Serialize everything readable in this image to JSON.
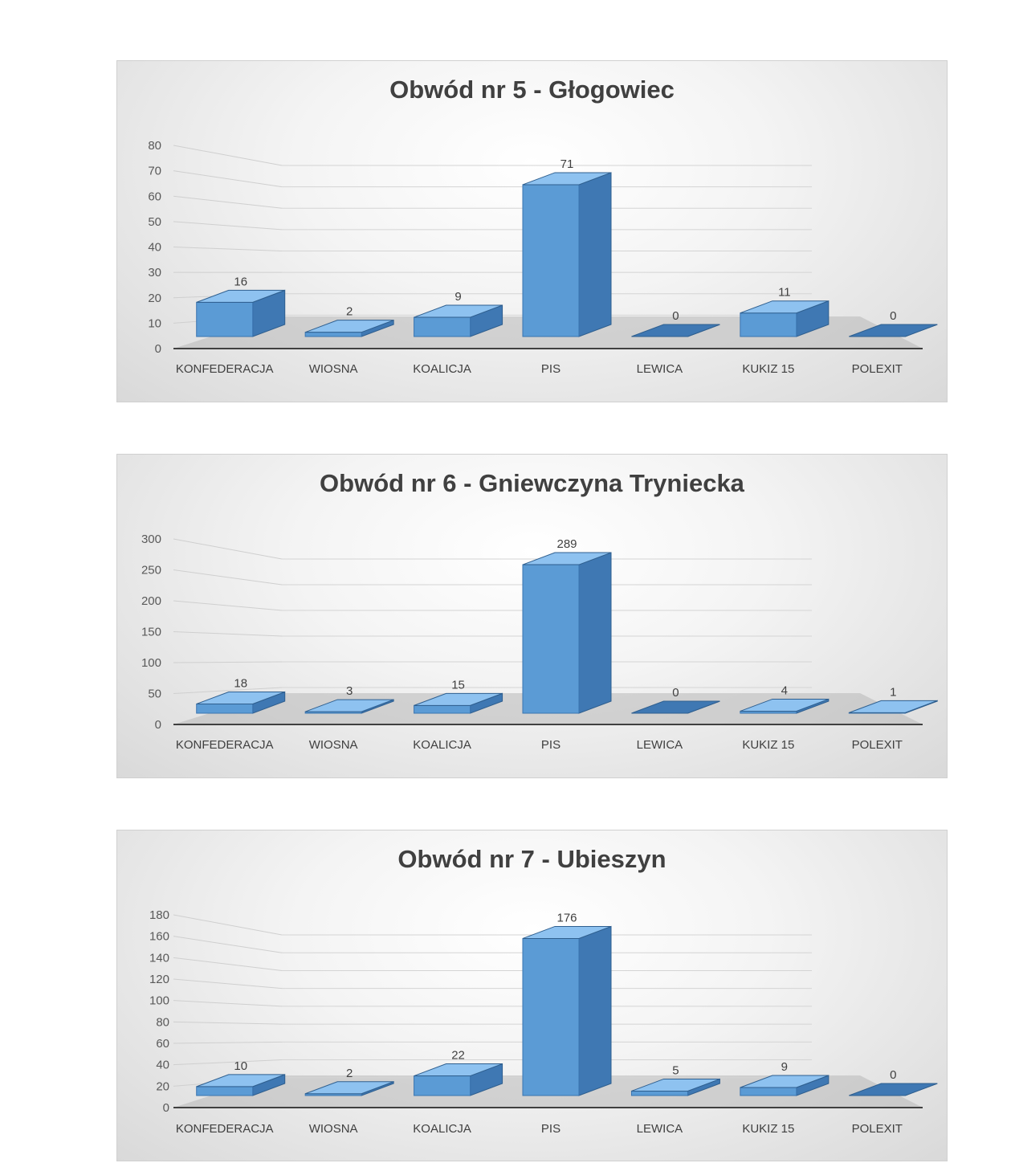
{
  "chart_data": [
    {
      "type": "bar",
      "title": "Obwód nr 5 - Głogowiec",
      "categories": [
        "KONFEDERACJA",
        "WIOSNA",
        "KOALICJA",
        "PIS",
        "LEWICA",
        "KUKIZ 15",
        "POLEXIT"
      ],
      "values": [
        16,
        2,
        9,
        71,
        0,
        11,
        0
      ],
      "yticks": [
        "0",
        "10",
        "20",
        "30",
        "40",
        "50",
        "60",
        "70",
        "80"
      ],
      "ylim": [
        0,
        80
      ],
      "grid": true,
      "legend": "none",
      "colors": {
        "bar_front": "#5b9bd5",
        "bar_top": "#8ec2f0",
        "bar_side": "#3f78b3"
      }
    },
    {
      "type": "bar",
      "title": "Obwód nr 6 - Gniewczyna Tryniecka",
      "categories": [
        "KONFEDERACJA",
        "WIOSNA",
        "KOALICJA",
        "PIS",
        "LEWICA",
        "KUKIZ 15",
        "POLEXIT"
      ],
      "values": [
        18,
        3,
        15,
        289,
        0,
        4,
        1
      ],
      "yticks": [
        "0",
        "50",
        "100",
        "150",
        "200",
        "250",
        "300"
      ],
      "ylim": [
        0,
        300
      ],
      "grid": true,
      "legend": "none",
      "colors": {
        "bar_front": "#5b9bd5",
        "bar_top": "#8ec2f0",
        "bar_side": "#3f78b3"
      }
    },
    {
      "type": "bar",
      "title": "Obwód nr 7 - Ubieszyn",
      "categories": [
        "KONFEDERACJA",
        "WIOSNA",
        "KOALICJA",
        "PIS",
        "LEWICA",
        "KUKIZ 15",
        "POLEXIT"
      ],
      "values": [
        10,
        2,
        22,
        176,
        5,
        9,
        0
      ],
      "yticks": [
        "0",
        "20",
        "40",
        "60",
        "80",
        "100",
        "120",
        "140",
        "160",
        "180"
      ],
      "ylim": [
        0,
        180
      ],
      "grid": true,
      "legend": "none",
      "colors": {
        "bar_front": "#5b9bd5",
        "bar_top": "#8ec2f0",
        "bar_side": "#3f78b3"
      }
    }
  ]
}
